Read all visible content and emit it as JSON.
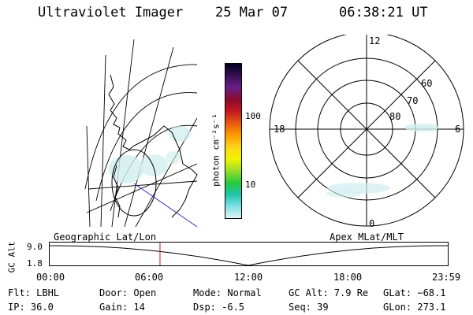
{
  "header": {
    "instrument": "Ultraviolet Imager",
    "date": "25 Mar 07",
    "time": "06:38:21 UT"
  },
  "colorbar": {
    "unit_label": "photon cm⁻²s⁻¹",
    "ticks": [
      "100",
      "10"
    ],
    "colors": [
      "#000020",
      "#3a1050",
      "#6a1e8a",
      "#8c0a2a",
      "#c41820",
      "#e85a10",
      "#ff9a00",
      "#ffd21a",
      "#f2f500",
      "#9adf2a",
      "#28c83a",
      "#1ec6a8",
      "#7fe0e6",
      "#dff4f4"
    ]
  },
  "left_map": {
    "label": "Geographic Lat/Lon"
  },
  "right_map": {
    "label": "Apex MLat/MLT",
    "mlt_labels": {
      "top": "12",
      "right": "6",
      "bottom": "0",
      "left": "18"
    },
    "lat_labels": [
      "60",
      "70",
      "80"
    ]
  },
  "altitude_plot": {
    "ylabel": "GC Alt",
    "y_ticks": [
      "9.0",
      "1.8"
    ],
    "x_ticks": [
      "00:00",
      "06:00",
      "12:00",
      "18:00",
      "23:59"
    ],
    "current_time_hours": 6.639,
    "marker_color": "#d01010"
  },
  "info": {
    "filter": "Flt: LBHL",
    "ip": "IP: 36.0",
    "door": "Door: Open",
    "gain": "Gain: 14",
    "mode": "Mode: Normal",
    "dsp": "Dsp:    -6.5",
    "gc_alt": "GC Alt: 7.9 Re",
    "seq": "Seq: 39",
    "glat": "GLat: −68.1",
    "glon": "GLon: 273.1"
  }
}
